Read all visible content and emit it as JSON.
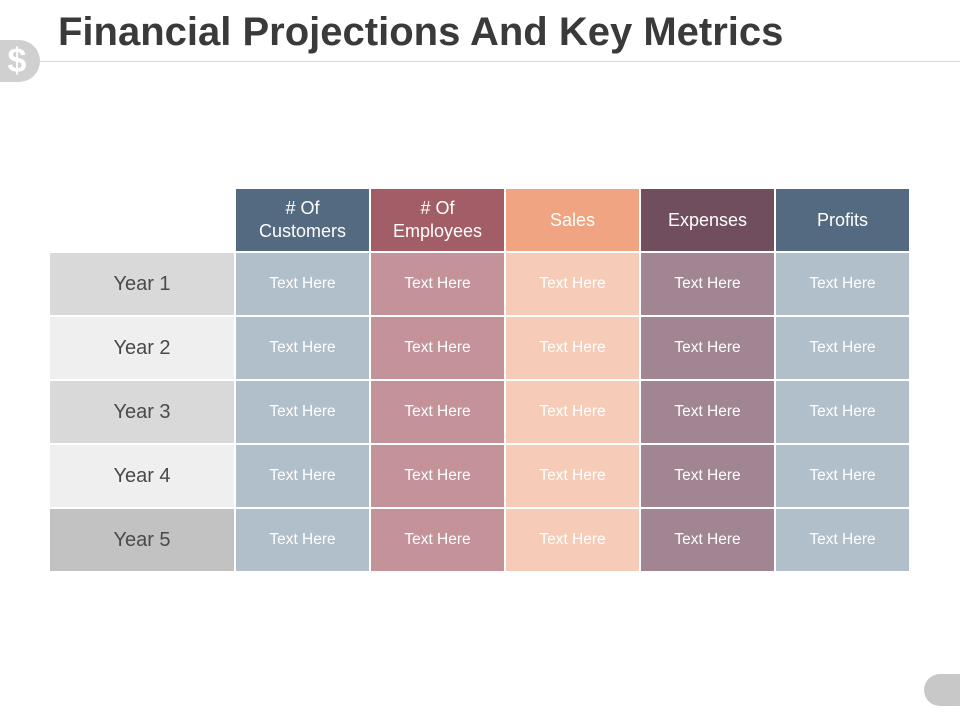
{
  "slide": {
    "title": "Financial Projections And Key Metrics",
    "badge_icon": "dollar-sign-icon",
    "badge_symbol": "$"
  },
  "table": {
    "columns": [
      {
        "label": "# Of\nCustomers",
        "header_color": "#536a80",
        "cell_color": "#b0bfca"
      },
      {
        "label": "# Of\nEmployees",
        "header_color": "#a25d66",
        "cell_color": "#c4939a"
      },
      {
        "label": "Sales",
        "header_color": "#f0a481",
        "cell_color": "#f6ccb8"
      },
      {
        "label": "Expenses",
        "header_color": "#704e5e",
        "cell_color": "#a28592"
      },
      {
        "label": "Profits",
        "header_color": "#536a80",
        "cell_color": "#b0bfca"
      }
    ],
    "rows": [
      {
        "label": "Year 1",
        "label_bg": "#d9d9d9",
        "cells": [
          "Text Here",
          "Text Here",
          "Text Here",
          "Text Here",
          "Text Here"
        ]
      },
      {
        "label": "Year 2",
        "label_bg": "#efefef",
        "cells": [
          "Text Here",
          "Text Here",
          "Text Here",
          "Text Here",
          "Text Here"
        ]
      },
      {
        "label": "Year 3",
        "label_bg": "#d9d9d9",
        "cells": [
          "Text Here",
          "Text Here",
          "Text Here",
          "Text Here",
          "Text Here"
        ]
      },
      {
        "label": "Year 4",
        "label_bg": "#efefef",
        "cells": [
          "Text Here",
          "Text Here",
          "Text Here",
          "Text Here",
          "Text Here"
        ]
      },
      {
        "label": "Year 5",
        "label_bg": "#c2c2c2",
        "cells": [
          "Text Here",
          "Text Here",
          "Text Here",
          "Text Here",
          "Text Here"
        ]
      }
    ]
  }
}
